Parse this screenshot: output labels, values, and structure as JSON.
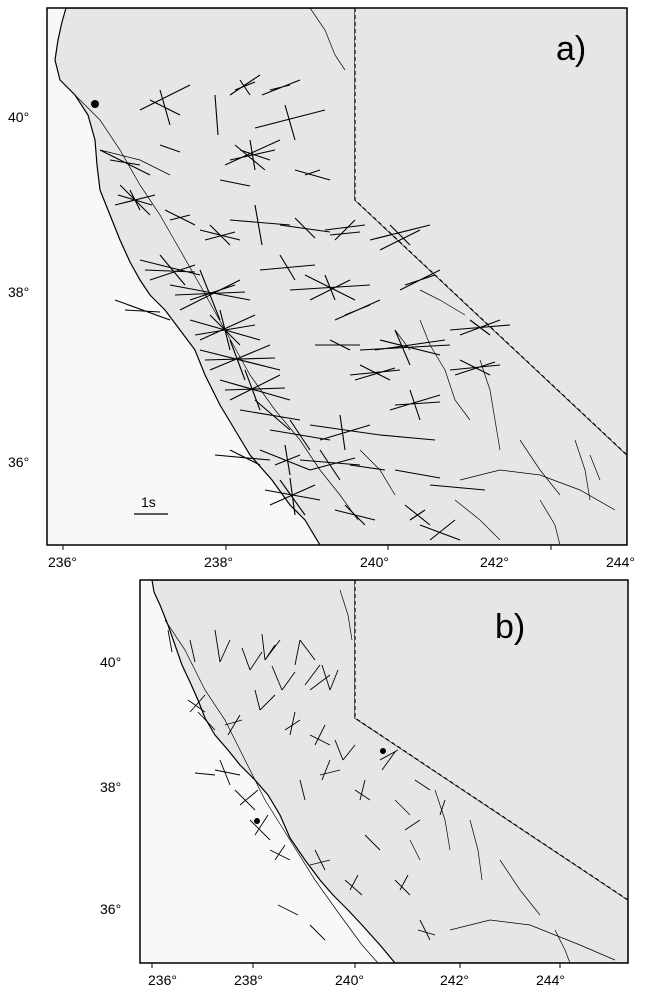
{
  "panels": [
    {
      "id": "a",
      "label": "a)",
      "x_ticks": [
        "236°",
        "238°",
        "240°",
        "242°",
        "244°"
      ],
      "y_ticks": [
        "36°",
        "38°",
        "40°"
      ],
      "scale_label": "1s",
      "colors": {
        "land": "#e6e6e6",
        "ocean": "#f8f8f8",
        "lines": "#000000"
      }
    },
    {
      "id": "b",
      "label": "b)",
      "x_ticks": [
        "236°",
        "238°",
        "240°",
        "242°",
        "244°"
      ],
      "y_ticks": [
        "36°",
        "38°",
        "40°"
      ],
      "colors": {
        "land": "#e6e6e6",
        "ocean": "#f8f8f8",
        "lines": "#000000"
      }
    }
  ]
}
